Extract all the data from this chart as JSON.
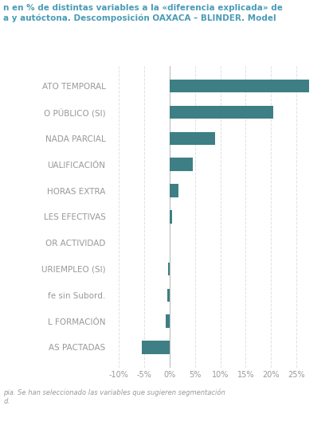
{
  "categories": [
    "ATO TEMPORAL",
    "O PÚBLICO (SI)",
    "NADA PARCIAL",
    "UALIFICACIÓN",
    "HORAS EXTRA",
    "LES EFECTIVAS",
    "OR ACTIVIDAD",
    "URIEMPLEO (SI)",
    "fe sin Subord.",
    "L FORMACIÓN",
    "AS PACTADAS"
  ],
  "values": [
    27.5,
    20.5,
    9.0,
    4.5,
    1.8,
    0.5,
    0.05,
    -0.3,
    -0.4,
    -0.8,
    -5.5
  ],
  "bar_color": "#3d7f84",
  "title_line1": "n en % de distintas variables a la «diferencia explicada» de",
  "title_line2": "a y autóctona. Descomposición OAXACA – BLINDER. Model",
  "footer_line1": "pia. Se han seleccionado las variables que sugieren segmentación",
  "footer_line2": "d.",
  "xlim": [
    -12,
    29
  ],
  "xticks": [
    -10,
    -5,
    0,
    5,
    10,
    15,
    20,
    25
  ],
  "xtick_labels": [
    "-10%",
    "-5%",
    "0%",
    "5%",
    "10%",
    "15%",
    "20%",
    "25%"
  ],
  "title_color": "#4a9bb5",
  "tick_color": "#999999",
  "grid_color": "#e0e0e0",
  "footer_color": "#999999",
  "background_color": "#ffffff"
}
